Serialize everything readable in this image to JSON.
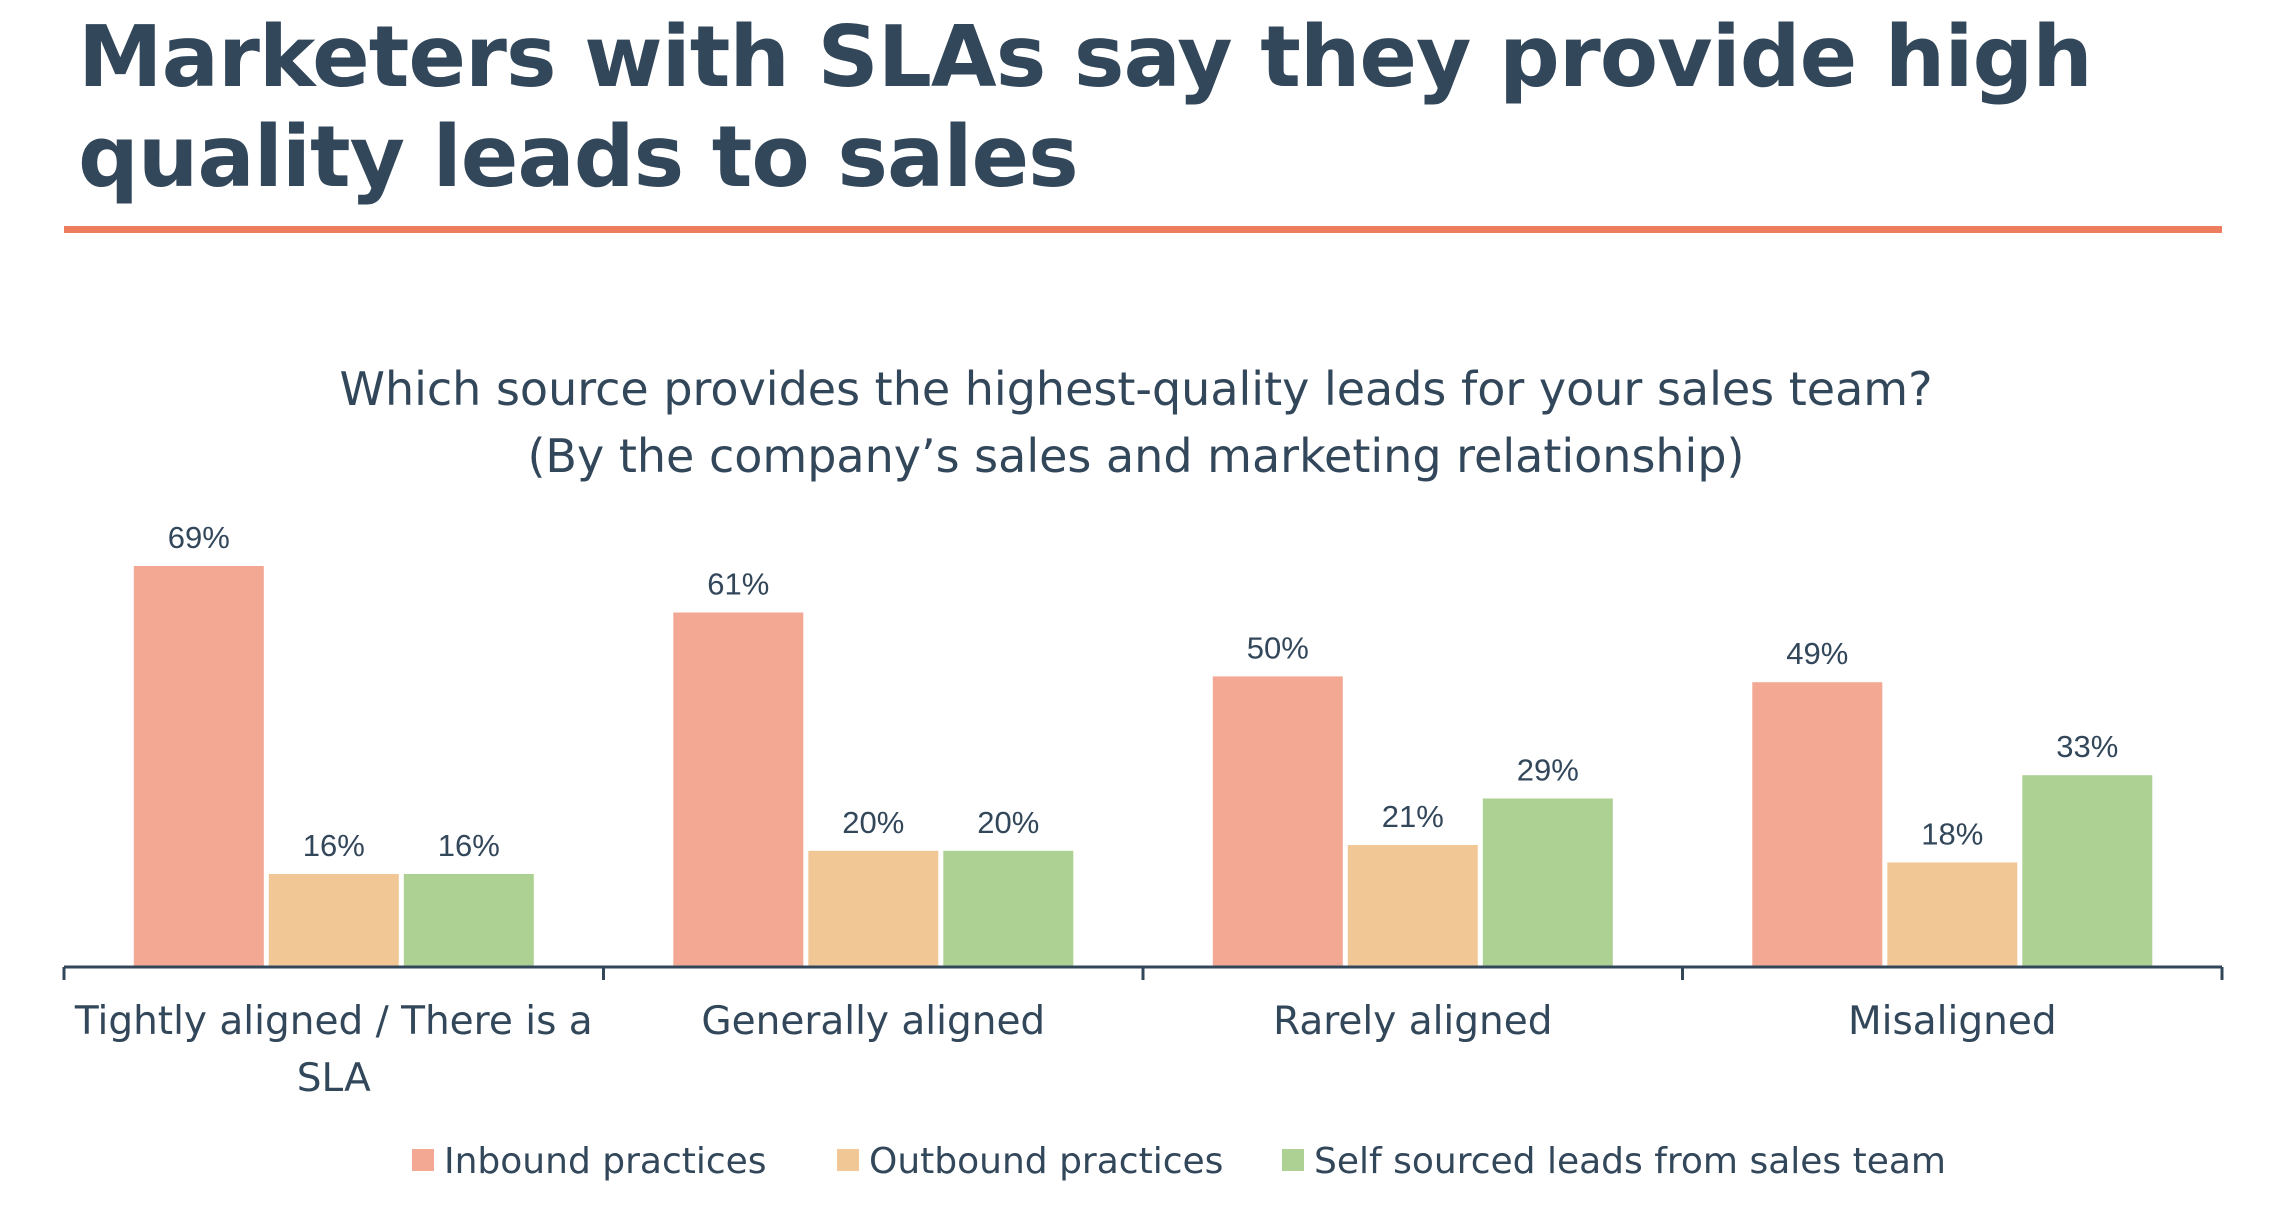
{
  "headline": "Marketers with SLAs say they provide high quality leads to sales",
  "colors": {
    "heading": "#33475b",
    "rule": "#ee7c5e",
    "inbound": "#f2a893",
    "outbound": "#f1c795",
    "self_sourced": "#acd193",
    "axis": "#33475b"
  },
  "chart_data": {
    "type": "bar",
    "title": "Which source provides the highest-quality leads for your sales team?",
    "subtitle": "(By the company’s sales and marketing relationship)",
    "categories": [
      [
        "Tightly aligned / There is a",
        "SLA"
      ],
      [
        "Generally aligned"
      ],
      [
        "Rarely aligned"
      ],
      [
        "Misaligned"
      ]
    ],
    "series": [
      {
        "name": "Inbound practices",
        "values": [
          69,
          61,
          50,
          49
        ],
        "color": "#f2a893"
      },
      {
        "name": "Outbound practices",
        "values": [
          16,
          20,
          21,
          18
        ],
        "color": "#f1c795"
      },
      {
        "name": "Self sourced leads from sales team",
        "values": [
          16,
          20,
          29,
          33
        ],
        "color": "#acd193"
      }
    ],
    "value_suffix": "%",
    "ylim": [
      0,
      75
    ],
    "grid": false,
    "legend": "bottom-center"
  }
}
